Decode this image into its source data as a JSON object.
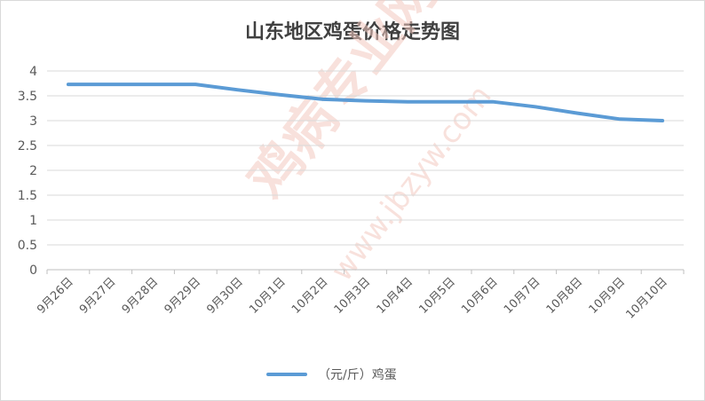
{
  "chart_data": {
    "type": "line",
    "title": "山东地区鸡蛋价格走势图",
    "categories": [
      "9月26日",
      "9月27日",
      "9月28日",
      "9月29日",
      "9月30日",
      "10月1日",
      "10月2日",
      "10月3日",
      "10月4日",
      "10月5日",
      "10月6日",
      "10月7日",
      "10月8日",
      "10月9日",
      "10月10日"
    ],
    "series": [
      {
        "name": "（元/斤）鸡蛋",
        "values": [
          3.73,
          3.73,
          3.73,
          3.73,
          3.62,
          3.52,
          3.43,
          3.4,
          3.38,
          3.38,
          3.38,
          3.28,
          3.15,
          3.03,
          3.0
        ]
      }
    ],
    "ylim": [
      0,
      4
    ],
    "yticks": [
      "0",
      "0.5",
      "1",
      "1.5",
      "2",
      "2.5",
      "3",
      "3.5",
      "4"
    ],
    "grid": true,
    "legend_position": "bottom",
    "line_color": "#5b9bd5"
  },
  "watermark": {
    "text": "鸡病专业网",
    "url": "www.jbzyw.com"
  }
}
